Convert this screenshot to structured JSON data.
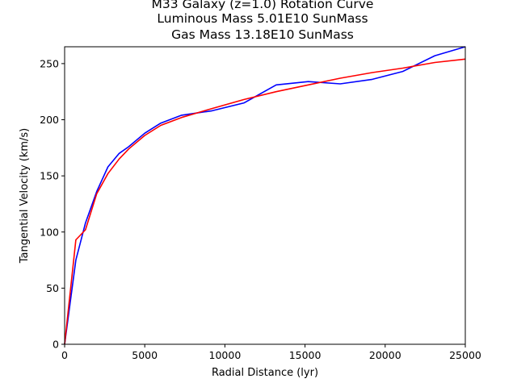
{
  "chart_data": {
    "type": "line",
    "title_lines": [
      "M33 Galaxy (z=1.0) Rotation Curve",
      "Luminous Mass 5.01E10 SunMass",
      "Gas Mass 13.18E10 SunMass"
    ],
    "xlabel": "Radial Distance (lyr)",
    "ylabel": "Tangential Velocity (km/s)",
    "xlim": [
      0,
      25000
    ],
    "ylim": [
      0,
      265
    ],
    "xticks": [
      0,
      5000,
      10000,
      15000,
      20000,
      25000
    ],
    "yticks": [
      0,
      50,
      100,
      150,
      200,
      250
    ],
    "grid": false,
    "series": [
      {
        "color": "#0000ff",
        "x": [
          0,
          700,
          1300,
          2000,
          2700,
          3400,
          4000,
          5000,
          6000,
          7300,
          9200,
          11200,
          13200,
          15200,
          17200,
          19200,
          21100,
          23100,
          25000
        ],
        "y": [
          0,
          75,
          108,
          136,
          158,
          170,
          176,
          188,
          197,
          204,
          208,
          215,
          231,
          234,
          232,
          236,
          243,
          257,
          265
        ]
      },
      {
        "color": "#ff0000",
        "x": [
          0,
          700,
          1300,
          2000,
          2700,
          3400,
          4000,
          5000,
          6000,
          7300,
          9200,
          11200,
          13200,
          15200,
          17200,
          19200,
          21100,
          23100,
          25000
        ],
        "y": [
          0,
          93,
          102,
          134,
          152,
          165,
          174,
          186,
          195,
          202,
          210,
          218,
          225,
          231,
          237,
          242,
          246,
          251,
          254
        ]
      }
    ]
  }
}
